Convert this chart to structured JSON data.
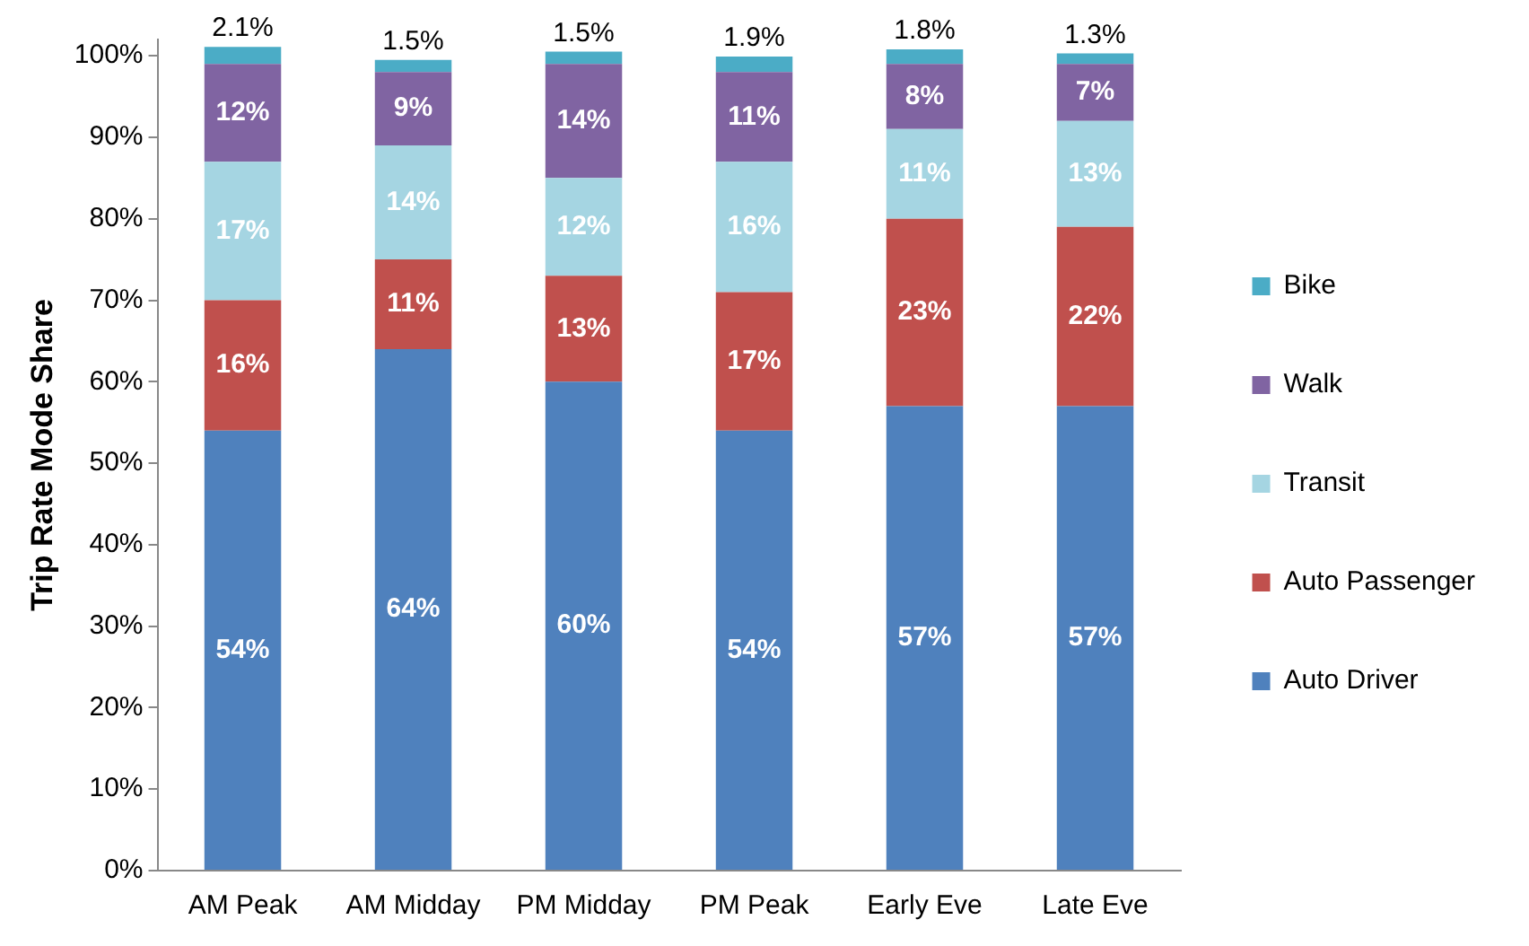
{
  "chart_data": {
    "type": "bar",
    "stacked": true,
    "ylabel": "Trip Rate Mode Share",
    "categories": [
      "AM Peak",
      "AM Midday",
      "PM Midday",
      "PM Peak",
      "Early Eve",
      "Late Eve"
    ],
    "series": [
      {
        "name": "Auto Driver",
        "color": "#4f81bd",
        "values": [
          54,
          64,
          60,
          54,
          57,
          57
        ],
        "value_labels": [
          "54%",
          "64%",
          "60%",
          "54%",
          "57%",
          "57%"
        ]
      },
      {
        "name": "Auto Passenger",
        "color": "#c0504d",
        "values": [
          16,
          11,
          13,
          17,
          23,
          22
        ],
        "value_labels": [
          "16%",
          "11%",
          "13%",
          "17%",
          "23%",
          "22%"
        ]
      },
      {
        "name": "Transit",
        "color": "#a5d5e2",
        "values": [
          17,
          14,
          12,
          16,
          11,
          13
        ],
        "value_labels": [
          "17%",
          "14%",
          "12%",
          "16%",
          "11%",
          "13%"
        ]
      },
      {
        "name": "Walk",
        "color": "#8064a2",
        "values": [
          12,
          9,
          14,
          11,
          8,
          7
        ],
        "value_labels": [
          "12%",
          "9%",
          "14%",
          "11%",
          "8%",
          "7%"
        ]
      },
      {
        "name": "Bike",
        "color": "#4bacc6",
        "values": [
          2.1,
          1.5,
          1.5,
          1.9,
          1.8,
          1.3
        ],
        "value_labels": [
          "2.1%",
          "1.5%",
          "1.5%",
          "1.9%",
          "1.8%",
          "1.3%"
        ]
      }
    ],
    "ylim": [
      0,
      102
    ],
    "yticks": [
      {
        "value": 0,
        "label": "0%"
      },
      {
        "value": 10,
        "label": "10%"
      },
      {
        "value": 20,
        "label": "20%"
      },
      {
        "value": 30,
        "label": "30%"
      },
      {
        "value": 40,
        "label": "40%"
      },
      {
        "value": 50,
        "label": "50%"
      },
      {
        "value": 60,
        "label": "60%"
      },
      {
        "value": 70,
        "label": "70%"
      },
      {
        "value": 80,
        "label": "80%"
      },
      {
        "value": 90,
        "label": "90%"
      },
      {
        "value": 100,
        "label": "100%"
      }
    ],
    "grid": false,
    "legend": "right"
  }
}
